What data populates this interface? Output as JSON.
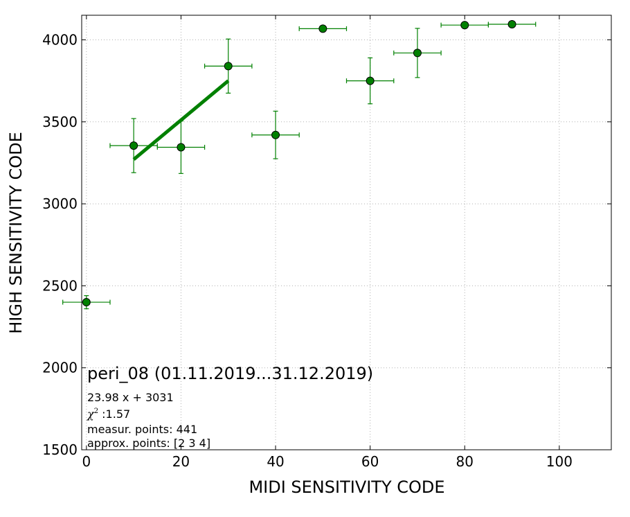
{
  "chart_data": {
    "type": "scatter",
    "xlabel": "MIDI SENSITIVITY CODE",
    "ylabel": "HIGH SENSITIVITY CODE",
    "xlim": [
      -1,
      111
    ],
    "ylim": [
      1500,
      4150
    ],
    "x_ticks": [
      0,
      20,
      40,
      60,
      80,
      100
    ],
    "y_ticks": [
      1500,
      2000,
      2500,
      3000,
      3500,
      4000
    ],
    "grid": true,
    "points": [
      {
        "x": 0,
        "y": 2400,
        "xerr": 5,
        "yerr": 40
      },
      {
        "x": 10,
        "y": 3355,
        "xerr": 5,
        "yerr": 165
      },
      {
        "x": 20,
        "y": 3345,
        "xerr": 5,
        "yerr": 160
      },
      {
        "x": 30,
        "y": 3840,
        "xerr": 5,
        "yerr": 165
      },
      {
        "x": 40,
        "y": 3420,
        "xerr": 5,
        "yerr": 145
      },
      {
        "x": 50,
        "y": 4068,
        "xerr": 5,
        "yerr": 0
      },
      {
        "x": 60,
        "y": 3750,
        "xerr": 5,
        "yerr": 140
      },
      {
        "x": 70,
        "y": 3920,
        "xerr": 5,
        "yerr": 150
      },
      {
        "x": 80,
        "y": 4090,
        "xerr": 5,
        "yerr": 0
      },
      {
        "x": 90,
        "y": 4095,
        "xerr": 5,
        "yerr": 0
      }
    ],
    "fit_line": {
      "slope": 23.98,
      "intercept": 3031,
      "x_range": [
        10,
        30
      ]
    },
    "colors": {
      "marker": "#008000",
      "fit": "#008000",
      "grid": "#b0b0b0"
    },
    "annotation": {
      "title": "peri_08 (01.11.2019...31.12.2019)",
      "equation": "23.98 x + 3031",
      "chi_symbol": "χ",
      "chi_sup": "2",
      "chi_value": " :1.57",
      "measur": "measur. points: 441",
      "approx": "approx. points: [2 3 4]"
    }
  }
}
